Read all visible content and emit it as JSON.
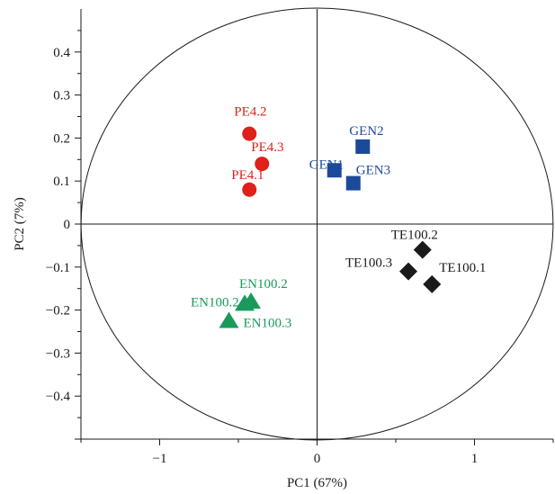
{
  "chart_data": {
    "type": "scatter",
    "xlabel": "PC1 (67%)",
    "ylabel": "PC2 (7%)",
    "xlim": [
      -1.5,
      1.5
    ],
    "ylim": [
      -0.5,
      0.5
    ],
    "x_ticks": [
      -1,
      0,
      1
    ],
    "x_tick_labels": [
      "−1",
      "0",
      "1"
    ],
    "y_ticks": [
      0.4,
      0.3,
      0.2,
      0.1,
      0,
      -0.1,
      -0.2,
      -0.3,
      -0.4
    ],
    "y_tick_labels": [
      "0.4",
      "0.3",
      "0.2",
      "0.1",
      "0",
      "−0.1",
      "−0.2",
      "−0.3",
      "−0.4"
    ],
    "reference_lines": {
      "x": 0,
      "y": 0
    },
    "confidence_ellipse": true,
    "grid": false,
    "groups": [
      {
        "marker": "circle",
        "color": "#e0201b",
        "points": [
          {
            "label": "PE4.2",
            "x": -0.43,
            "y": 0.21
          },
          {
            "label": "PE4.3",
            "x": -0.35,
            "y": 0.14
          },
          {
            "label": "PE4.1",
            "x": -0.43,
            "y": 0.08
          }
        ]
      },
      {
        "marker": "square",
        "color": "#1c4a9a",
        "points": [
          {
            "label": "GEN2",
            "x": 0.29,
            "y": 0.18
          },
          {
            "label": "GEN1",
            "x": 0.11,
            "y": 0.125
          },
          {
            "label": "GEN3",
            "x": 0.23,
            "y": 0.095
          }
        ]
      },
      {
        "marker": "diamond",
        "color": "#1a1a1a",
        "points": [
          {
            "label": "TE100.2",
            "x": 0.67,
            "y": -0.06
          },
          {
            "label": "TE100.3",
            "x": 0.58,
            "y": -0.11
          },
          {
            "label": "TE100.1",
            "x": 0.73,
            "y": -0.14
          }
        ]
      },
      {
        "marker": "triangle",
        "color": "#1a9a5a",
        "points": [
          {
            "label": "EN100.2",
            "x": -0.42,
            "y": -0.18
          },
          {
            "label": "EN100.2",
            "x": -0.46,
            "y": -0.185
          },
          {
            "label": "EN100.3",
            "x": -0.56,
            "y": -0.225
          }
        ]
      }
    ]
  }
}
